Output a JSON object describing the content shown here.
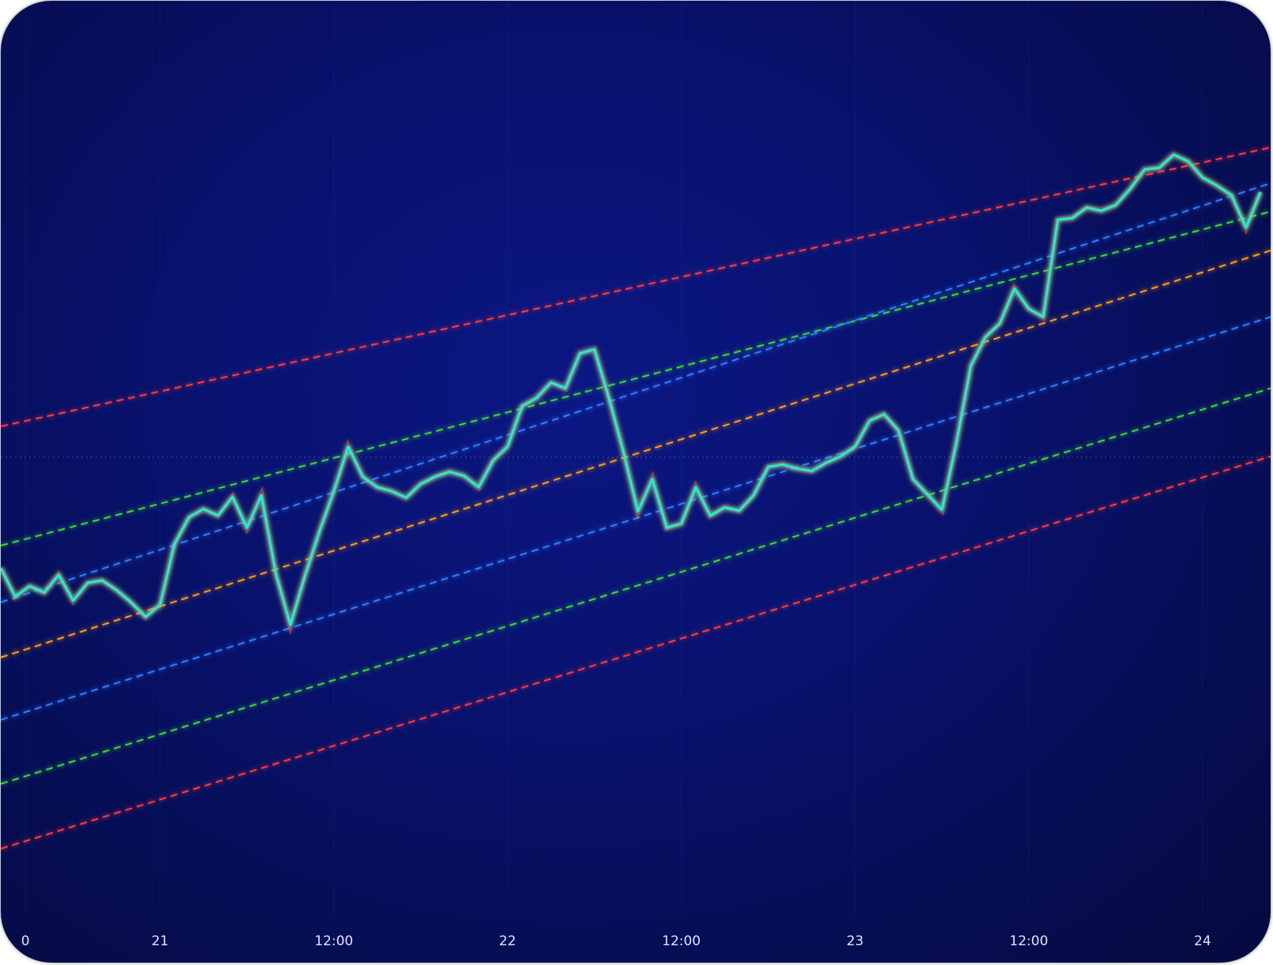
{
  "chart_data": {
    "type": "line",
    "xlim": [
      13,
      100.7
    ],
    "ylim": [
      0,
      113
    ],
    "xticks": [
      {
        "value": 14.7,
        "label": "0"
      },
      {
        "value": 24,
        "label": "21"
      },
      {
        "value": 36,
        "label": "12:00"
      },
      {
        "value": 48,
        "label": "22"
      },
      {
        "value": 60,
        "label": "12:00"
      },
      {
        "value": 72,
        "label": "23"
      },
      {
        "value": 84,
        "label": "12:00"
      },
      {
        "value": 96,
        "label": "24"
      }
    ],
    "grid": true,
    "hline": 56.7,
    "series": [
      {
        "color": "#2fe6d4",
        "x": [
          13,
          14,
          15,
          16,
          17,
          18,
          19,
          20,
          21,
          22,
          23,
          24,
          25,
          26,
          27,
          28,
          29,
          30,
          31,
          32,
          33,
          34,
          35,
          36,
          37,
          38,
          39,
          40,
          41,
          42,
          43,
          44,
          45,
          46,
          47,
          48,
          49,
          50,
          51,
          52,
          53,
          54,
          55,
          56,
          57,
          58,
          59,
          60,
          61,
          62,
          63,
          64,
          65,
          66,
          67,
          68,
          69,
          70,
          71,
          72,
          73,
          74,
          75,
          76,
          77,
          78,
          79,
          80,
          81,
          82,
          83,
          84,
          85,
          86,
          87,
          88,
          89,
          90,
          91,
          92,
          93,
          94,
          95,
          96,
          97,
          98,
          99,
          100
        ],
        "values": [
          43,
          39.5,
          40.8,
          40,
          42.2,
          39,
          41.2,
          41.5,
          40.3,
          38.8,
          37,
          38.5,
          46,
          49.3,
          50.3,
          49.5,
          51.8,
          48,
          52,
          42.3,
          36,
          42,
          47.5,
          52.5,
          58,
          54.3,
          53,
          52.5,
          51.7,
          53.4,
          54.3,
          54.9,
          54.4,
          53,
          56.3,
          58,
          63,
          64,
          65.9,
          65.2,
          69.5,
          70,
          64,
          57.4,
          50,
          54,
          48,
          48.5,
          53,
          49.5,
          50.5,
          50.1,
          52,
          55.5,
          55.8,
          55.3,
          55,
          56,
          56.8,
          58,
          61.2,
          62,
          60,
          54,
          52.1,
          50.2,
          58.5,
          68,
          71.5,
          73.2,
          77.5,
          75,
          74,
          86,
          86.2,
          87.5,
          87.1,
          87.8,
          89.8,
          92.2,
          92.4,
          94,
          93.2,
          91.2,
          90.2,
          89,
          85,
          89.4
        ]
      }
    ],
    "channel_x": [
      13,
      100.7
    ],
    "channels": [
      {
        "color": "#ff3b3b",
        "values": [
          60.5,
          94.9
        ]
      },
      {
        "color": "#3fd63a",
        "values": [
          45.8,
          87
        ]
      },
      {
        "color": "#2f7dff",
        "values": [
          38.8,
          90.5
        ]
      },
      {
        "color": "#ff9a1f",
        "values": [
          32,
          82.2
        ]
      },
      {
        "color": "#2f7dff",
        "values": [
          24.3,
          74
        ]
      },
      {
        "color": "#3fd63a",
        "values": [
          16.4,
          65.2
        ]
      },
      {
        "color": "#ff3b3b",
        "values": [
          8.4,
          56.8
        ]
      }
    ]
  }
}
